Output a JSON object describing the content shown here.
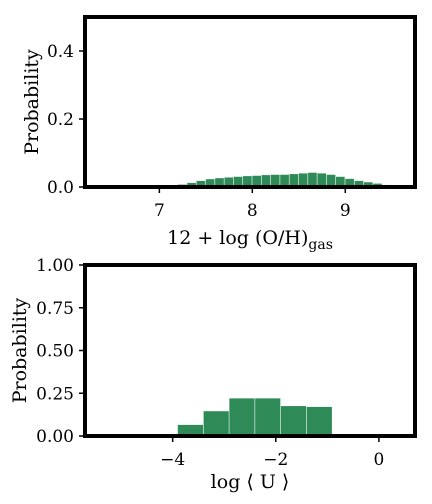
{
  "bar_color": "#2e8b57",
  "chart_data": [
    {
      "type": "bar",
      "histogram": true,
      "xlabel": "12 + log (O/H)",
      "xlabel_subscript": "gas",
      "ylabel": "Probability",
      "xlim": [
        6.2,
        9.75
      ],
      "ylim": [
        0.0,
        0.5
      ],
      "xticks": [
        7,
        8,
        9
      ],
      "xtick_labels": [
        "7",
        "8",
        "9"
      ],
      "yticks": [
        0.0,
        0.2,
        0.4
      ],
      "ytick_labels": [
        "0.0",
        "0.2",
        "0.4"
      ],
      "bin_width": 0.1,
      "bin_starts": [
        7.1,
        7.2,
        7.3,
        7.4,
        7.5,
        7.6,
        7.7,
        7.8,
        7.9,
        8.0,
        8.1,
        8.2,
        8.3,
        8.4,
        8.5,
        8.6,
        8.7,
        8.8,
        8.9,
        9.0,
        9.1,
        9.2,
        9.3,
        9.4
      ],
      "values": [
        0.003,
        0.007,
        0.012,
        0.018,
        0.023,
        0.026,
        0.028,
        0.03,
        0.032,
        0.033,
        0.035,
        0.036,
        0.036,
        0.038,
        0.04,
        0.042,
        0.04,
        0.036,
        0.03,
        0.024,
        0.018,
        0.014,
        0.01,
        0.006
      ]
    },
    {
      "type": "bar",
      "histogram": true,
      "xlabel": "log ⟨ U ⟩",
      "ylabel": "Probability",
      "xlim": [
        -5.7,
        0.7
      ],
      "ylim": [
        0.0,
        1.0
      ],
      "xticks": [
        -4,
        -2,
        0
      ],
      "xtick_labels": [
        "−4",
        "−2",
        "0"
      ],
      "yticks": [
        0.0,
        0.25,
        0.5,
        0.75,
        1.0
      ],
      "ytick_labels": [
        "0.00",
        "0.25",
        "0.50",
        "0.75",
        "1.00"
      ],
      "bin_width": 0.5,
      "bin_starts": [
        -3.9,
        -3.4,
        -2.9,
        -2.4,
        -1.9,
        -1.4,
        -0.9
      ],
      "values": [
        0.065,
        0.145,
        0.22,
        0.22,
        0.175,
        0.17,
        0.0
      ]
    }
  ]
}
